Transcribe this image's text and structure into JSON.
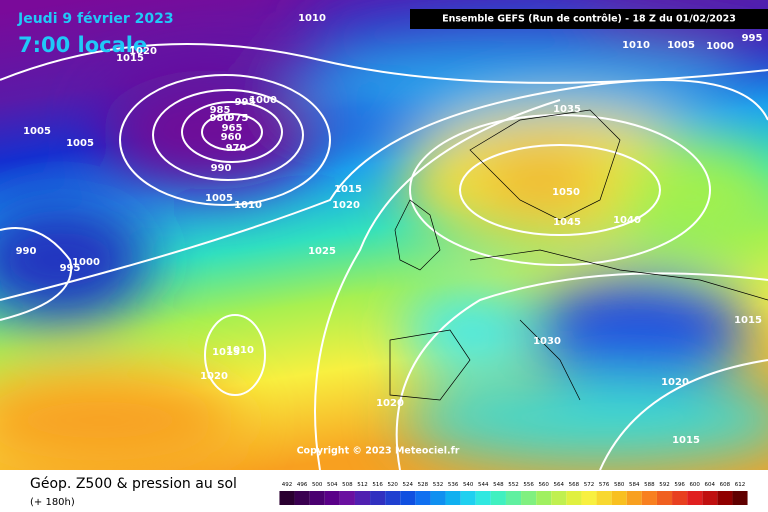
{
  "header": {
    "date": "Jeudi 9 février 2023",
    "time": "7:00 locale",
    "model": "Ensemble GEFS  (Run de contrôle)  -  18 Z du 01/02/2023"
  },
  "copyright": "Copyright © 2023 Meteociel.fr",
  "footer": {
    "title": "Géop. Z500 & pression au sol",
    "lead": "(+ 180h)"
  },
  "isobar_labels": [
    1010,
    1020,
    1015,
    1005,
    1005,
    1000,
    995,
    985,
    980,
    975,
    965,
    960,
    970,
    990,
    1005,
    1010,
    1015,
    1020,
    1025,
    990,
    995,
    1000,
    1015,
    1010,
    1020,
    1020,
    1035,
    1050,
    1045,
    1040,
    1010,
    1005,
    1000,
    995,
    1015,
    1030,
    1020,
    1015
  ],
  "colorbar": [
    492,
    496,
    500,
    504,
    508,
    512,
    516,
    520,
    524,
    528,
    532,
    536,
    540,
    544,
    548,
    552,
    556,
    560,
    564,
    568,
    572,
    576,
    580,
    584,
    588,
    592,
    596,
    600,
    604,
    608,
    612
  ]
}
